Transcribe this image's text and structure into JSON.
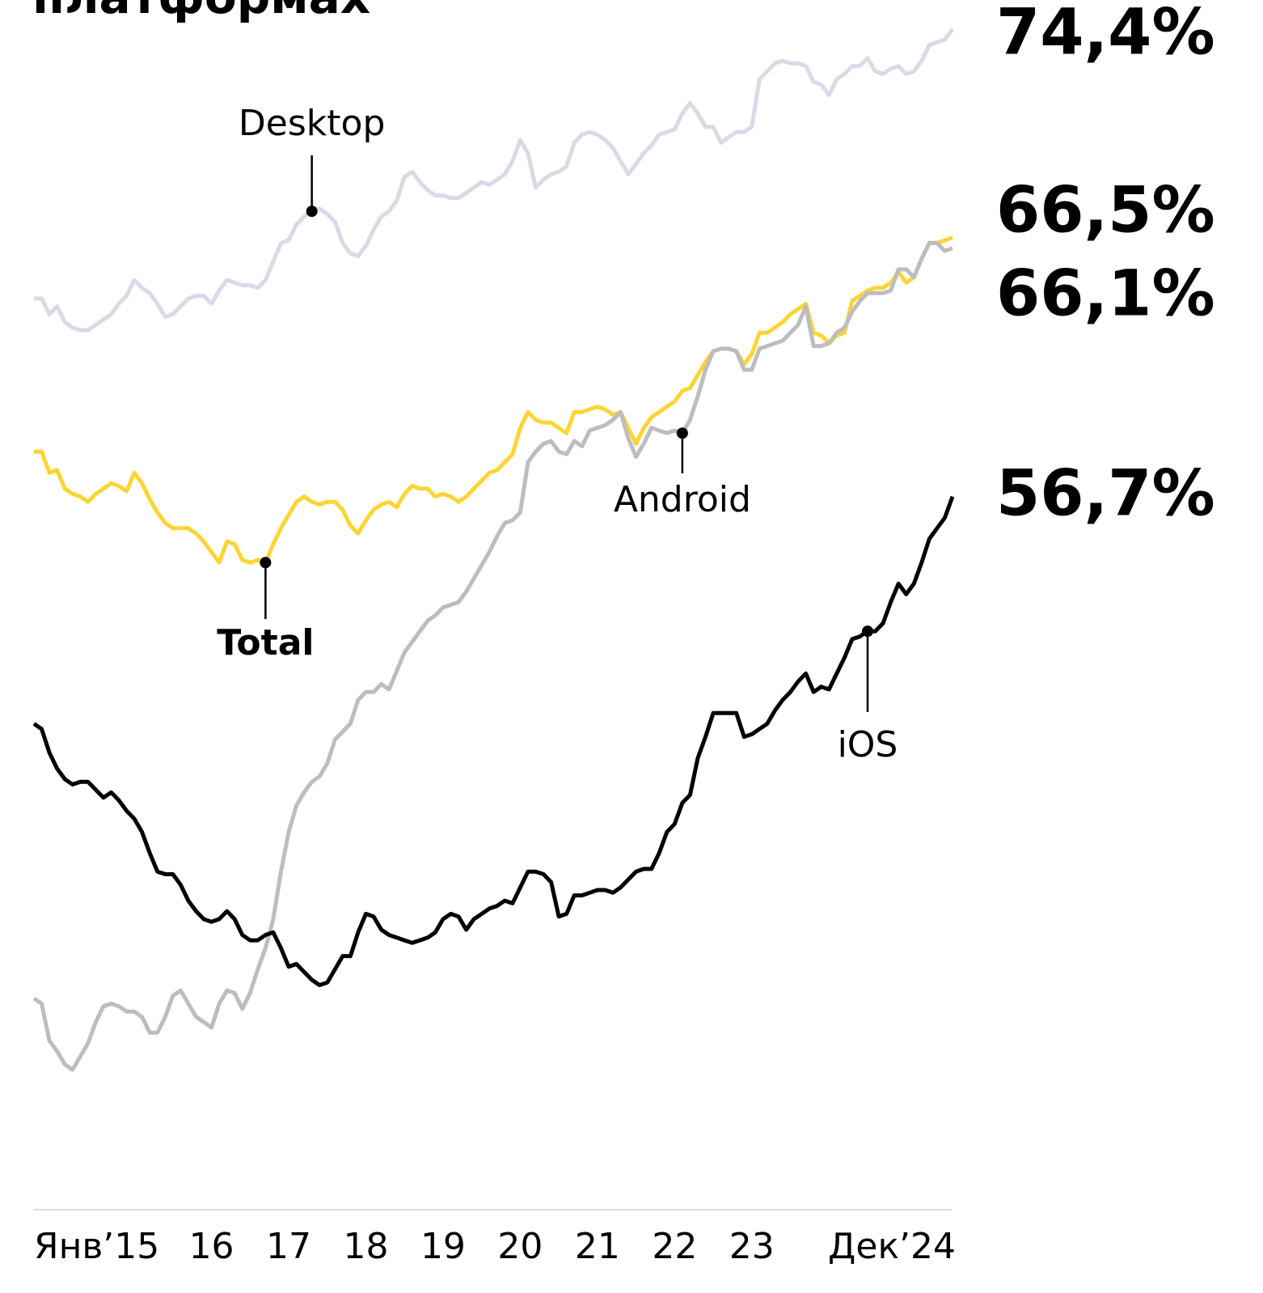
{
  "chart_data": {
    "type": "line",
    "title": "платформах",
    "categories": [
      "Янв’15",
      null,
      null,
      null,
      null,
      null,
      null,
      null,
      null,
      null,
      null,
      null,
      null,
      null,
      null,
      null,
      null,
      null,
      null,
      null,
      null,
      null,
      null,
      "16",
      null,
      null,
      null,
      null,
      null,
      null,
      null,
      null,
      null,
      "17",
      null,
      null,
      null,
      null,
      null,
      null,
      null,
      null,
      null,
      "18",
      null,
      null,
      null,
      null,
      null,
      null,
      null,
      null,
      null,
      "19",
      null,
      null,
      null,
      null,
      null,
      null,
      null,
      null,
      null,
      "20",
      null,
      null,
      null,
      null,
      null,
      null,
      null,
      null,
      null,
      "21",
      null,
      null,
      null,
      null,
      null,
      null,
      null,
      null,
      null,
      "22",
      null,
      null,
      null,
      null,
      null,
      null,
      null,
      null,
      null,
      "23",
      null,
      null,
      null,
      null,
      null,
      null,
      null,
      null,
      null,
      null,
      null,
      null,
      null,
      null,
      null,
      null,
      null,
      null,
      null,
      null,
      null,
      null,
      null,
      null,
      null,
      "Дек’24"
    ],
    "ylim": [
      29.7,
      75.5
    ],
    "series": [
      {
        "name": "Desktop",
        "color": "#d8dae6",
        "value_labels": {
          "119": "74,4%"
        },
        "values": [
          64.2,
          64.2,
          63.6,
          63.9,
          63.3,
          63.1,
          63.0,
          63.0,
          63.2,
          63.4,
          63.6,
          64.0,
          64.3,
          64.9,
          64.6,
          64.4,
          64.0,
          63.5,
          63.6,
          63.9,
          64.2,
          64.3,
          64.3,
          64.0,
          64.5,
          64.9,
          64.8,
          64.7,
          64.7,
          64.6,
          64.9,
          65.6,
          66.3,
          66.4,
          67.0,
          67.3,
          67.5,
          67.6,
          67.4,
          67.1,
          66.3,
          65.9,
          65.8,
          66.2,
          66.8,
          67.3,
          67.5,
          67.9,
          68.8,
          69.0,
          68.6,
          68.3,
          68.1,
          68.1,
          68.0,
          68.0,
          68.2,
          68.4,
          68.6,
          68.5,
          68.7,
          68.9,
          69.4,
          70.2,
          69.7,
          68.4,
          68.7,
          68.9,
          69.0,
          69.2,
          70.1,
          70.4,
          70.5,
          70.4,
          70.2,
          69.9,
          69.4,
          68.9,
          69.3,
          69.7,
          70.0,
          70.4,
          70.5,
          70.6,
          71.2,
          71.6,
          71.2,
          70.7,
          70.7,
          70.1,
          70.3,
          70.5,
          70.5,
          70.7,
          72.5,
          72.8,
          73.1,
          73.2,
          73.1,
          73.1,
          73.0,
          72.4,
          72.3,
          71.9,
          72.5,
          72.7,
          73.0,
          73.0,
          73.3,
          72.8,
          72.7,
          72.9,
          73.0,
          72.7,
          72.8,
          73.2,
          73.8,
          73.9,
          74.0,
          74.4
        ]
      },
      {
        "name": "Total",
        "color": "#fcd535",
        "value_labels": {
          "119": "66,5%"
        },
        "values": [
          58.4,
          58.4,
          57.6,
          57.7,
          57.0,
          56.8,
          56.7,
          56.5,
          56.8,
          57.0,
          57.2,
          57.1,
          56.9,
          57.6,
          57.2,
          56.6,
          56.1,
          55.7,
          55.5,
          55.5,
          55.5,
          55.3,
          55.0,
          54.6,
          54.2,
          55.0,
          54.9,
          54.3,
          54.2,
          54.3,
          54.2,
          54.9,
          55.5,
          56.0,
          56.5,
          56.7,
          56.5,
          56.4,
          56.5,
          56.5,
          56.2,
          55.6,
          55.3,
          55.8,
          56.2,
          56.4,
          56.5,
          56.3,
          56.8,
          57.1,
          57.0,
          57.0,
          56.7,
          56.8,
          56.7,
          56.5,
          56.7,
          57.0,
          57.3,
          57.6,
          57.7,
          58.0,
          58.3,
          59.3,
          59.9,
          59.6,
          59.5,
          59.5,
          59.3,
          59.1,
          59.9,
          59.9,
          60.0,
          60.1,
          60.0,
          59.8,
          59.9,
          59.3,
          58.7,
          59.3,
          59.7,
          59.9,
          60.1,
          60.3,
          60.7,
          60.8,
          61.3,
          61.8,
          62.2,
          62.3,
          62.3,
          62.2,
          61.7,
          62.1,
          62.9,
          62.9,
          63.1,
          63.3,
          63.6,
          63.8,
          64.0,
          62.9,
          62.8,
          62.5,
          62.8,
          62.9,
          64.1,
          64.3,
          64.5,
          64.6,
          64.6,
          64.8,
          65.2,
          64.8,
          65.0,
          65.7,
          66.3,
          66.3,
          66.4,
          66.5
        ]
      },
      {
        "name": "Android",
        "color": "#bdbdbd",
        "value_labels": {
          "119": "66,1%"
        },
        "values": [
          37.7,
          37.5,
          36.1,
          35.7,
          35.2,
          35.0,
          35.5,
          36.0,
          36.8,
          37.4,
          37.5,
          37.4,
          37.2,
          37.2,
          37.0,
          36.4,
          36.4,
          37.0,
          37.8,
          38.0,
          37.5,
          37.0,
          36.8,
          36.6,
          37.5,
          38.0,
          37.9,
          37.3,
          37.9,
          38.8,
          39.6,
          40.7,
          42.5,
          44.0,
          45.0,
          45.5,
          45.9,
          46.1,
          46.6,
          47.5,
          47.8,
          48.1,
          49.0,
          49.3,
          49.3,
          49.6,
          49.4,
          50.1,
          50.8,
          51.2,
          51.6,
          52.0,
          52.2,
          52.5,
          52.6,
          52.7,
          53.1,
          53.6,
          54.1,
          54.6,
          55.2,
          55.7,
          55.8,
          56.1,
          58.0,
          58.4,
          58.7,
          58.8,
          58.4,
          58.3,
          58.8,
          58.6,
          59.2,
          59.3,
          59.4,
          59.6,
          59.9,
          58.9,
          58.2,
          58.7,
          59.3,
          59.2,
          59.1,
          59.2,
          59.1,
          59.6,
          60.5,
          61.5,
          62.2,
          62.3,
          62.3,
          62.2,
          61.5,
          61.5,
          62.3,
          62.4,
          62.5,
          62.6,
          62.9,
          63.2,
          63.9,
          62.4,
          62.4,
          62.5,
          62.9,
          63.1,
          63.7,
          64.1,
          64.4,
          64.4,
          64.4,
          64.5,
          65.3,
          65.3,
          65.0,
          65.7,
          66.3,
          66.3,
          66.0,
          66.1
        ]
      },
      {
        "name": "iOS",
        "color": "#000000",
        "value_labels": {
          "119": "56,7%"
        },
        "values": [
          48.1,
          47.9,
          47.0,
          46.4,
          46.0,
          45.8,
          45.9,
          45.9,
          45.6,
          45.3,
          45.5,
          45.2,
          44.8,
          44.5,
          44.0,
          43.2,
          42.5,
          42.4,
          42.4,
          42.0,
          41.4,
          41.0,
          40.7,
          40.6,
          40.7,
          41.0,
          40.7,
          40.1,
          39.9,
          39.9,
          40.1,
          40.2,
          39.6,
          38.9,
          39.0,
          38.7,
          38.4,
          38.2,
          38.3,
          38.8,
          39.3,
          39.3,
          40.2,
          40.9,
          40.8,
          40.3,
          40.1,
          40.0,
          39.9,
          39.8,
          39.9,
          40.0,
          40.2,
          40.7,
          40.9,
          40.8,
          40.3,
          40.7,
          40.9,
          41.1,
          41.2,
          41.4,
          41.3,
          41.9,
          42.5,
          42.5,
          42.4,
          42.1,
          40.8,
          40.9,
          41.6,
          41.6,
          41.7,
          41.8,
          41.8,
          41.7,
          41.9,
          42.2,
          42.5,
          42.6,
          42.6,
          43.2,
          44.0,
          44.3,
          45.1,
          45.4,
          46.8,
          47.6,
          48.5,
          48.5,
          48.5,
          48.5,
          47.6,
          47.7,
          47.9,
          48.1,
          48.6,
          49.0,
          49.3,
          49.7,
          50.0,
          49.3,
          49.5,
          49.4,
          50.0,
          50.6,
          51.3,
          51.4,
          51.6,
          51.6,
          51.9,
          52.7,
          53.4,
          53.0,
          53.4,
          54.2,
          55.1,
          55.5,
          55.9,
          56.7
        ]
      }
    ]
  }
}
